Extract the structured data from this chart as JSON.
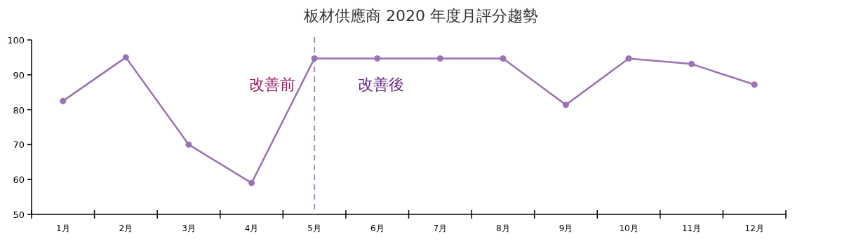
{
  "chart_data": {
    "type": "line",
    "title": "板材供應商 2020 年度月評分趨勢",
    "categories": [
      "1月",
      "2月",
      "3月",
      "4月",
      "5月",
      "6月",
      "7月",
      "8月",
      "9月",
      "10月",
      "11月",
      "12月"
    ],
    "series": [
      {
        "color": "#9b72b4",
        "values": [
          82.5,
          95,
          70,
          59,
          94.7,
          94.7,
          94.7,
          94.7,
          81.4,
          94.7,
          93.1,
          87.2
        ]
      }
    ],
    "ylim": [
      50,
      100
    ],
    "yticks": [
      50,
      60,
      70,
      80,
      90,
      100
    ],
    "grid": false,
    "marker": "circle",
    "line_style": "solid",
    "ref_lines": [
      {
        "axis": "x",
        "value": "5月",
        "color": "#a98bc6",
        "line_style": "dashed"
      }
    ],
    "annotations": [
      "改善前",
      "改善後"
    ]
  }
}
